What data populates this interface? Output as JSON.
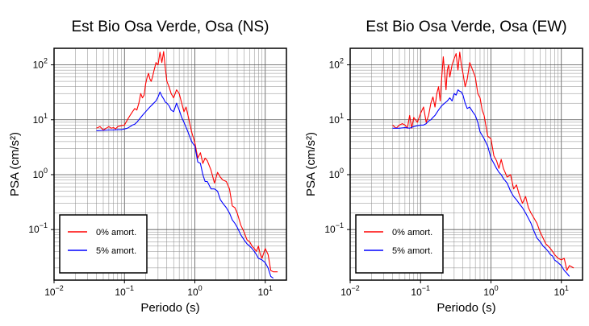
{
  "chart_data": [
    {
      "type": "line",
      "title": "Est Bio Osa Verde, Osa (NS)",
      "xlabel": "Periodo (s)",
      "ylabel": "PSA (cm/s²)",
      "xscale": "log",
      "yscale": "log",
      "xlim": [
        0.01,
        20
      ],
      "ylim": [
        0.012,
        200
      ],
      "grid": true,
      "legend_position": "bottom-left",
      "x_ticks": [
        {
          "value": 0.01,
          "base": "10",
          "exp": "−2"
        },
        {
          "value": 0.1,
          "base": "10",
          "exp": "−1"
        },
        {
          "value": 1,
          "base": "10",
          "exp": "0"
        },
        {
          "value": 10,
          "base": "10",
          "exp": "1"
        }
      ],
      "y_ticks": [
        {
          "value": 0.1,
          "base": "10",
          "exp": "−1"
        },
        {
          "value": 1,
          "base": "10",
          "exp": "0"
        },
        {
          "value": 10,
          "base": "10",
          "exp": "1"
        },
        {
          "value": 100,
          "base": "10",
          "exp": "2"
        }
      ],
      "series": [
        {
          "name": "0% amort.",
          "color": "#ff0000",
          "x": [
            0.04,
            0.045,
            0.05,
            0.055,
            0.06,
            0.065,
            0.07,
            0.075,
            0.08,
            0.09,
            0.1,
            0.11,
            0.12,
            0.13,
            0.14,
            0.15,
            0.16,
            0.17,
            0.18,
            0.19,
            0.2,
            0.21,
            0.22,
            0.23,
            0.24,
            0.25,
            0.26,
            0.27,
            0.28,
            0.3,
            0.32,
            0.34,
            0.36,
            0.38,
            0.4,
            0.43,
            0.46,
            0.5,
            0.55,
            0.6,
            0.65,
            0.7,
            0.75,
            0.8,
            0.9,
            1.0,
            1.1,
            1.2,
            1.3,
            1.4,
            1.5,
            1.7,
            1.9,
            2.1,
            2.3,
            2.5,
            2.8,
            3.1,
            3.4,
            3.7,
            4.0,
            4.5,
            5.0,
            5.5,
            6.0,
            6.5,
            7.0,
            7.5,
            8.0,
            8.5,
            9.0,
            10,
            11,
            12,
            13,
            15
          ],
          "y": [
            7.0,
            7.5,
            6.5,
            7.0,
            7.5,
            7.0,
            7.2,
            6.8,
            7.5,
            7.8,
            8.0,
            10.0,
            12.0,
            14.0,
            16.0,
            15.0,
            20.0,
            30.0,
            25.0,
            28.0,
            45.0,
            60.0,
            70.0,
            55.0,
            50.0,
            60.0,
            75.0,
            90.0,
            110.0,
            100.0,
            170.0,
            110.0,
            175.0,
            90.0,
            50.0,
            40.0,
            30.0,
            25.0,
            35.0,
            30.0,
            20.0,
            14.0,
            17.0,
            12.0,
            6.0,
            3.8,
            2.0,
            2.5,
            1.6,
            2.0,
            1.8,
            1.2,
            0.7,
            1.1,
            0.9,
            0.8,
            0.75,
            0.55,
            0.27,
            0.25,
            0.2,
            0.12,
            0.09,
            0.065,
            0.06,
            0.05,
            0.045,
            0.04,
            0.05,
            0.035,
            0.03,
            0.045,
            0.035,
            0.018,
            0.017,
            0.017
          ]
        },
        {
          "name": "5% amort.",
          "color": "#0000ff",
          "x": [
            0.04,
            0.05,
            0.06,
            0.07,
            0.08,
            0.09,
            0.1,
            0.11,
            0.12,
            0.13,
            0.14,
            0.15,
            0.16,
            0.18,
            0.2,
            0.22,
            0.24,
            0.26,
            0.28,
            0.3,
            0.32,
            0.34,
            0.36,
            0.38,
            0.4,
            0.43,
            0.46,
            0.5,
            0.55,
            0.6,
            0.65,
            0.7,
            0.8,
            0.9,
            1.0,
            1.1,
            1.2,
            1.3,
            1.4,
            1.5,
            1.7,
            1.9,
            2.1,
            2.3,
            2.5,
            2.8,
            3.1,
            3.4,
            3.7,
            4.0,
            4.5,
            5.0,
            5.5,
            6.0,
            6.5,
            7.0,
            7.5,
            8.0,
            9.0,
            10,
            11,
            12,
            13
          ],
          "y": [
            6.3,
            6.4,
            6.5,
            6.5,
            6.6,
            6.6,
            6.8,
            7.0,
            7.5,
            8.0,
            8.3,
            9.0,
            10.0,
            12.0,
            14.0,
            16.0,
            18.0,
            20.0,
            22.0,
            26.0,
            32.0,
            27.0,
            24.0,
            21.0,
            20.0,
            18.0,
            15.0,
            14.0,
            20.0,
            15.0,
            11.0,
            9.0,
            6.0,
            4.0,
            3.3,
            1.7,
            1.6,
            1.0,
            0.75,
            0.75,
            0.55,
            0.55,
            0.5,
            0.35,
            0.3,
            0.25,
            0.2,
            0.15,
            0.13,
            0.11,
            0.08,
            0.065,
            0.055,
            0.05,
            0.045,
            0.04,
            0.035,
            0.03,
            0.028,
            0.025,
            0.02,
            0.014,
            0.013
          ]
        }
      ]
    },
    {
      "type": "line",
      "title": "Est Bio Osa Verde, Osa (EW)",
      "xlabel": "Periodo (s)",
      "ylabel": "PSA (cm/s²)",
      "xscale": "log",
      "yscale": "log",
      "xlim": [
        0.01,
        20
      ],
      "ylim": [
        0.012,
        200
      ],
      "grid": true,
      "legend_position": "bottom-left",
      "x_ticks": [
        {
          "value": 0.01,
          "base": "10",
          "exp": "−2"
        },
        {
          "value": 0.1,
          "base": "10",
          "exp": "−1"
        },
        {
          "value": 1,
          "base": "10",
          "exp": "0"
        },
        {
          "value": 10,
          "base": "10",
          "exp": "1"
        }
      ],
      "y_ticks": [
        {
          "value": 0.1,
          "base": "10",
          "exp": "−1"
        },
        {
          "value": 1,
          "base": "10",
          "exp": "0"
        },
        {
          "value": 10,
          "base": "10",
          "exp": "1"
        },
        {
          "value": 100,
          "base": "10",
          "exp": "2"
        }
      ],
      "series": [
        {
          "name": "0% amort.",
          "color": "#ff0000",
          "x": [
            0.04,
            0.045,
            0.05,
            0.055,
            0.06,
            0.065,
            0.07,
            0.075,
            0.08,
            0.09,
            0.1,
            0.11,
            0.12,
            0.13,
            0.14,
            0.15,
            0.16,
            0.17,
            0.18,
            0.19,
            0.2,
            0.21,
            0.22,
            0.23,
            0.24,
            0.25,
            0.26,
            0.28,
            0.3,
            0.32,
            0.34,
            0.36,
            0.38,
            0.4,
            0.43,
            0.46,
            0.5,
            0.55,
            0.6,
            0.65,
            0.7,
            0.75,
            0.8,
            0.9,
            1.0,
            1.1,
            1.2,
            1.3,
            1.4,
            1.5,
            1.7,
            1.9,
            2.1,
            2.3,
            2.5,
            2.8,
            3.1,
            3.4,
            3.7,
            4.0,
            4.5,
            5.0,
            5.5,
            6.0,
            6.5,
            7.0,
            7.5,
            8.0,
            9.0,
            10,
            11,
            12,
            13,
            15
          ],
          "y": [
            8.0,
            7.0,
            8.0,
            8.5,
            8.0,
            7.0,
            12.0,
            7.0,
            11.0,
            9.0,
            13.0,
            17.0,
            9.0,
            12.0,
            20.0,
            26.0,
            17.0,
            30.0,
            40.0,
            22.0,
            60.0,
            140.0,
            70.0,
            35.0,
            80.0,
            100.0,
            60.0,
            100.0,
            130.0,
            160.0,
            80.0,
            170.0,
            100.0,
            70.0,
            40.0,
            55.0,
            110.0,
            80.0,
            60.0,
            30.0,
            25.0,
            15.0,
            12.0,
            5.0,
            4.5,
            2.2,
            1.8,
            1.3,
            1.9,
            1.3,
            0.9,
            1.0,
            0.55,
            0.65,
            0.45,
            0.3,
            0.4,
            0.25,
            0.2,
            0.17,
            0.13,
            0.09,
            0.07,
            0.055,
            0.05,
            0.045,
            0.04,
            0.035,
            0.03,
            0.028,
            0.03,
            0.018,
            0.022,
            0.02
          ]
        },
        {
          "name": "5% amort.",
          "color": "#0000ff",
          "x": [
            0.04,
            0.05,
            0.06,
            0.07,
            0.08,
            0.09,
            0.1,
            0.11,
            0.12,
            0.13,
            0.14,
            0.15,
            0.16,
            0.18,
            0.2,
            0.22,
            0.24,
            0.26,
            0.28,
            0.3,
            0.32,
            0.34,
            0.36,
            0.38,
            0.4,
            0.43,
            0.46,
            0.5,
            0.55,
            0.6,
            0.65,
            0.7,
            0.8,
            0.9,
            1.0,
            1.1,
            1.2,
            1.3,
            1.4,
            1.5,
            1.7,
            1.9,
            2.1,
            2.3,
            2.5,
            2.8,
            3.1,
            3.4,
            3.7,
            4.0,
            4.5,
            5.0,
            5.5,
            6.0,
            6.5,
            7.0,
            7.5,
            8.0,
            9.0,
            10,
            11,
            12,
            13
          ],
          "y": [
            7.0,
            7.0,
            7.2,
            7.0,
            7.5,
            7.8,
            8.0,
            8.0,
            8.5,
            9.5,
            10.0,
            11.0,
            12.0,
            15.0,
            18.0,
            20.0,
            22.0,
            25.0,
            22.0,
            30.0,
            28.0,
            35.0,
            33.0,
            32.0,
            28.0,
            20.0,
            16.0,
            17.0,
            14.0,
            12.0,
            9.0,
            6.0,
            4.5,
            3.3,
            2.0,
            1.6,
            1.3,
            1.1,
            1.0,
            0.85,
            0.7,
            0.5,
            0.4,
            0.35,
            0.3,
            0.25,
            0.2,
            0.16,
            0.13,
            0.1,
            0.07,
            0.06,
            0.05,
            0.045,
            0.04,
            0.035,
            0.033,
            0.028,
            0.025,
            0.022,
            0.018,
            0.016,
            0.014
          ]
        }
      ]
    }
  ]
}
